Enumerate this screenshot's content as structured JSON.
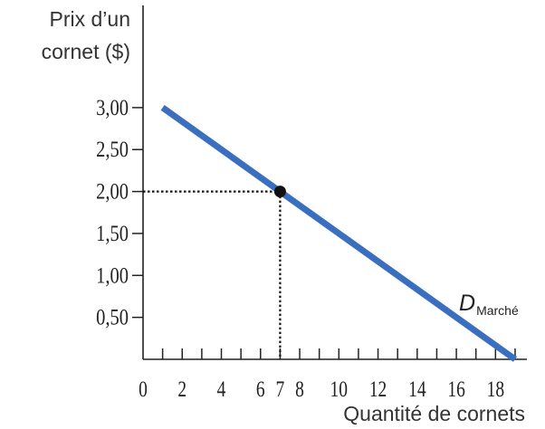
{
  "chart_data": {
    "type": "line",
    "ylabel_lines": [
      "Prix d’un",
      "cornet ($)"
    ],
    "xlabel": "Quantité de cornets",
    "xlim": [
      0,
      19
    ],
    "ylim": [
      0,
      3.3
    ],
    "x_ticks": [
      0,
      2,
      4,
      6,
      7,
      8,
      10,
      12,
      14,
      16,
      18
    ],
    "x_minor_ticks": [
      1,
      3,
      5,
      9,
      11,
      13,
      15,
      17,
      19
    ],
    "y_ticks": [
      {
        "value": 0.5,
        "label": "0,50"
      },
      {
        "value": 1.0,
        "label": "1,00"
      },
      {
        "value": 1.5,
        "label": "1,50"
      },
      {
        "value": 2.0,
        "label": "2,00"
      },
      {
        "value": 2.5,
        "label": "2,50"
      },
      {
        "value": 3.0,
        "label": "3,00"
      }
    ],
    "series": [
      {
        "name_main": "D",
        "name_sub": "Marché",
        "color": "#3a6fbf",
        "points": [
          {
            "x": 1,
            "y": 3.0
          },
          {
            "x": 19,
            "y": 0.0
          }
        ]
      }
    ],
    "highlight_point": {
      "x": 7,
      "y": 2.0
    },
    "grid": false,
    "legend": "inline label near lower right of line"
  }
}
